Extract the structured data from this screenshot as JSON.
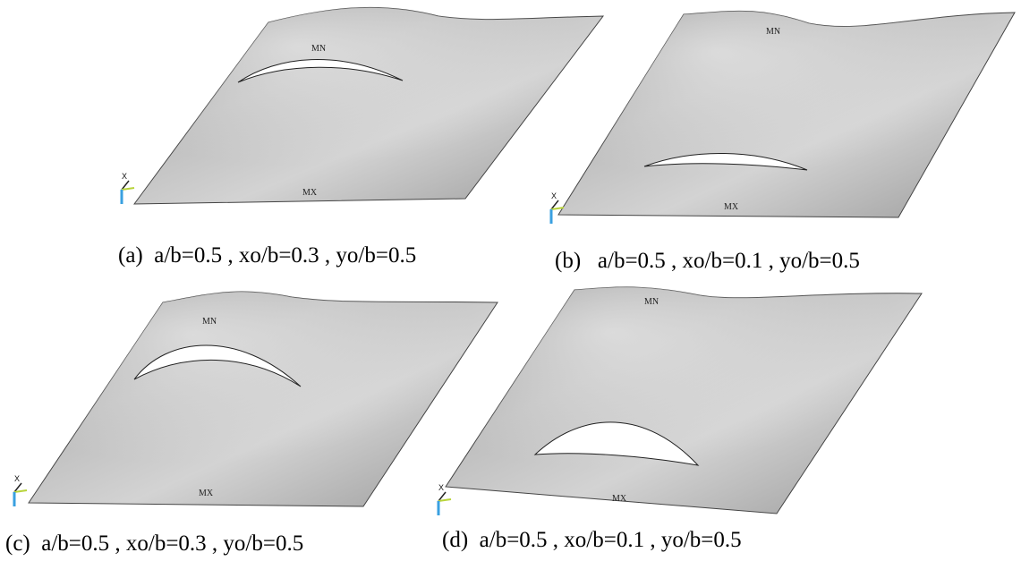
{
  "panels": [
    {
      "id": "a",
      "caption": "(a)  a/b=0.5 , xo/b=0.3 , yo/b=0.5",
      "min_label": "MN",
      "max_label": "MX",
      "axis_label": "X"
    },
    {
      "id": "b",
      "caption": "(b)   a/b=0.5 , xo/b=0.1 , yo/b=0.5",
      "min_label": "MN",
      "max_label": "MX",
      "axis_label": "X"
    },
    {
      "id": "c",
      "caption": "(c)  a/b=0.5 , xo/b=0.3 , yo/b=0.5",
      "min_label": "MN",
      "max_label": "MX",
      "axis_label": "X"
    },
    {
      "id": "d",
      "caption": "(d)  a/b=0.5 , xo/b=0.1 , yo/b=0.5",
      "min_label": "MN",
      "max_label": "MX",
      "axis_label": "X"
    }
  ],
  "colors": {
    "surface_light": "#d4d4d4",
    "surface_dark": "#8a8a8a",
    "crack_fill": "#ffffff",
    "axis_x": "#222222",
    "axis_y": "#b8d43a",
    "axis_z": "#3aa0e0"
  }
}
